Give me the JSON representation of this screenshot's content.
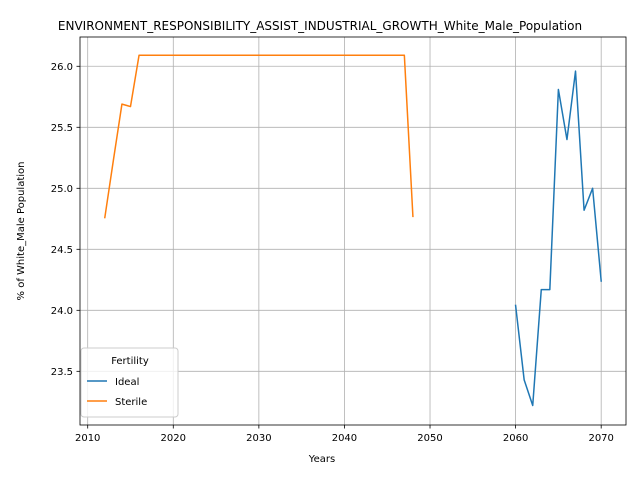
{
  "chart_data": {
    "type": "line",
    "title": "ENVIRONMENT_RESPONSIBILITY_ASSIST_INDUSTRIAL_GROWTH_White_Male_Population",
    "xlabel": "Years",
    "ylabel": "% of White_Male Population",
    "xlim": [
      2009.1,
      2072.9
    ],
    "ylim": [
      23.06,
      26.24
    ],
    "xticks": [
      2010,
      2020,
      2030,
      2040,
      2050,
      2060,
      2070
    ],
    "yticks": [
      23.5,
      24.0,
      24.5,
      25.0,
      25.5,
      26.0
    ],
    "ytick_labels": [
      "23.5",
      "24.0",
      "24.5",
      "25.0",
      "25.5",
      "26.0"
    ],
    "grid": true,
    "legend": {
      "title": "Fertility",
      "placement": "lower-left"
    },
    "series": [
      {
        "name": "Ideal",
        "color": "#1f77b4",
        "x": [
          2060,
          2061,
          2062,
          2063,
          2064,
          2065,
          2066,
          2067,
          2068,
          2069,
          2070
        ],
        "y": [
          24.04,
          23.43,
          23.22,
          24.17,
          24.17,
          25.81,
          25.4,
          25.96,
          24.82,
          25.0,
          24.24
        ]
      },
      {
        "name": "Sterile",
        "color": "#ff7f0e",
        "x": [
          2012,
          2013,
          2014,
          2015,
          2016,
          2017,
          2018,
          2019,
          2020,
          2021,
          2022,
          2023,
          2024,
          2025,
          2026,
          2027,
          2028,
          2029,
          2030,
          2031,
          2032,
          2033,
          2034,
          2035,
          2036,
          2037,
          2038,
          2039,
          2040,
          2041,
          2042,
          2043,
          2044,
          2045,
          2046,
          2047,
          2048
        ],
        "y": [
          24.76,
          25.23,
          25.69,
          25.67,
          26.09,
          26.09,
          26.09,
          26.09,
          26.09,
          26.09,
          26.09,
          26.09,
          26.09,
          26.09,
          26.09,
          26.09,
          26.09,
          26.09,
          26.09,
          26.09,
          26.09,
          26.09,
          26.09,
          26.09,
          26.09,
          26.09,
          26.09,
          26.09,
          26.09,
          26.09,
          26.09,
          26.09,
          26.09,
          26.09,
          26.09,
          26.09,
          24.77
        ]
      }
    ]
  }
}
